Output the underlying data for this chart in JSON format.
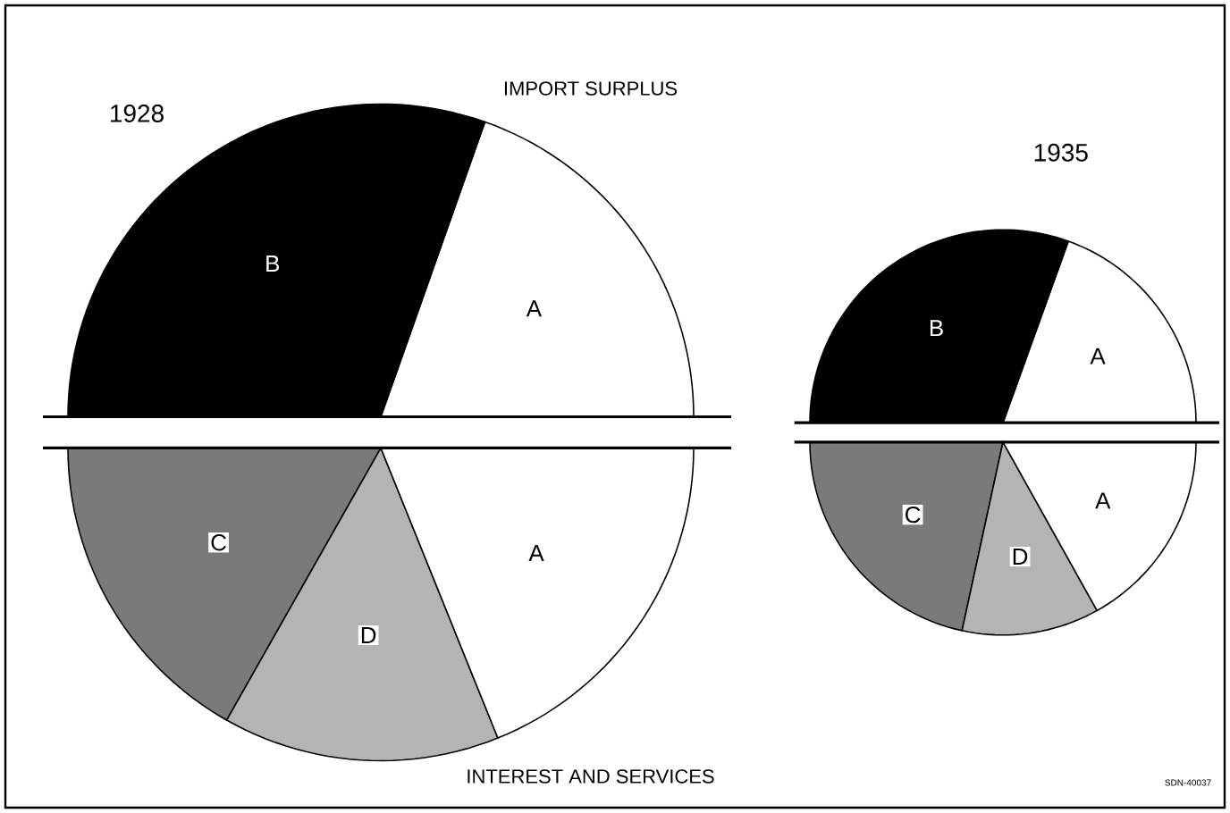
{
  "chart_data": [
    {
      "type": "pie",
      "title": "1928",
      "categories": [
        "A",
        "B",
        "C",
        "D",
        "A"
      ],
      "values": [
        19.6,
        30.4,
        16.8,
        14.3,
        18.9
      ],
      "colors": [
        "#ffffff",
        "#000000",
        "#7a7a7a",
        "#b4b4b4",
        "#ffffff"
      ],
      "annotations": [
        "IMPORT SURPLUS",
        "INTEREST AND SERVICES",
        "SDN-40037"
      ]
    },
    {
      "type": "pie",
      "title": "1935",
      "categories": [
        "A",
        "B",
        "C",
        "D",
        "A"
      ],
      "values": [
        19.5,
        30.5,
        21.6,
        11.5,
        16.9
      ],
      "colors": [
        "#ffffff",
        "#000000",
        "#7a7a7a",
        "#b4b4b4",
        "#ffffff"
      ]
    }
  ]
}
